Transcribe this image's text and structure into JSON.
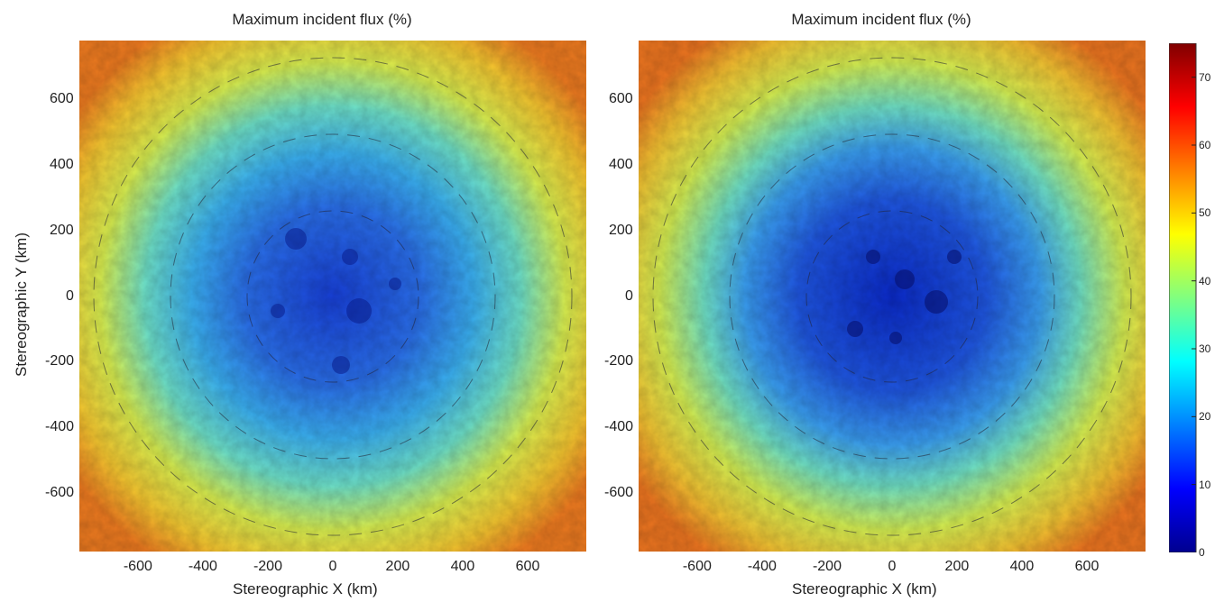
{
  "chart_data": [
    {
      "type": "heatmap",
      "title": "Maximum incident flux (%)",
      "xlabel": "Stereographic X (km)",
      "ylabel": "Stereographic Y (km)",
      "xlim": [
        -780,
        780
      ],
      "ylim": [
        -780,
        780
      ],
      "xticks": [
        -600,
        -400,
        -200,
        0,
        200,
        400,
        600
      ],
      "yticks": [
        600,
        400,
        200,
        0,
        -200,
        -400,
        -600
      ],
      "center_value": 15,
      "edge_value": 55,
      "center_extent_km": [
        0,
        0
      ],
      "colormap": "jet"
    },
    {
      "type": "heatmap",
      "title": "Maximum incident flux (%)",
      "xlabel": "Stereographic X (km)",
      "ylabel": "",
      "xlim": [
        -780,
        780
      ],
      "ylim": [
        -780,
        780
      ],
      "xticks": [
        -600,
        -400,
        -200,
        0,
        200,
        400,
        600
      ],
      "yticks": [
        600,
        400,
        200,
        0,
        -200,
        -400,
        -600
      ],
      "center_value": 10,
      "edge_value": 55,
      "center_extent_km": [
        0,
        0
      ],
      "colormap": "jet"
    }
  ],
  "colorbar": {
    "range": [
      0,
      75
    ],
    "ticks": [
      0,
      10,
      20,
      30,
      40,
      50,
      60,
      70
    ],
    "colors": [
      "#00008f",
      "#0000ff",
      "#0080ff",
      "#00ffff",
      "#80ff80",
      "#ffff00",
      "#ff8000",
      "#ff0000",
      "#800000"
    ]
  }
}
